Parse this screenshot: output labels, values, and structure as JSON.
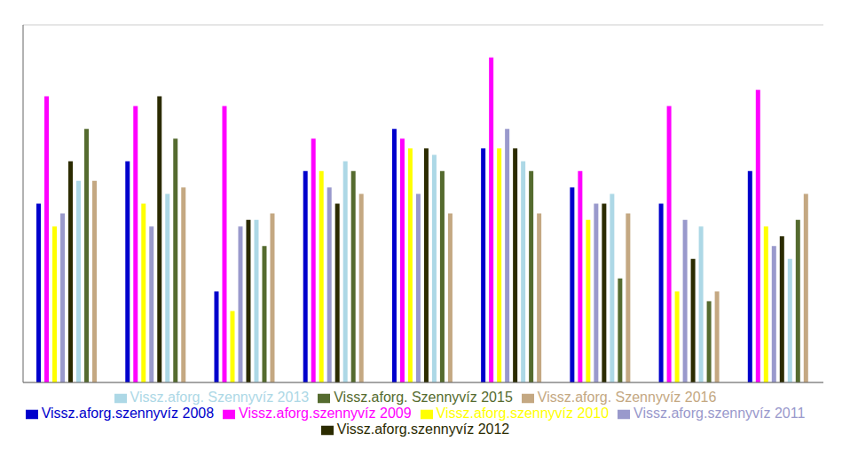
{
  "chart_data": {
    "type": "bar",
    "categories": [
      null,
      null,
      null,
      null,
      null,
      null,
      null,
      null,
      null
    ],
    "series": [
      {
        "name": "Vissz.aforg.szennyvíz 2008",
        "color": "#0000CC",
        "values": [
          55,
          68,
          28,
          65,
          78,
          72,
          60,
          55,
          65
        ]
      },
      {
        "name": "Vissz.aforg.szennyvíz 2009",
        "color": "#FF00FF",
        "values": [
          88,
          85,
          85,
          75,
          75,
          100,
          65,
          85,
          90
        ]
      },
      {
        "name": "Vissz.aforg.szennyvíz 2010",
        "color": "#FFFF00",
        "values": [
          48,
          55,
          22,
          65,
          72,
          72,
          50,
          28,
          48
        ]
      },
      {
        "name": "Vissz.aforg.szennyvíz 2011",
        "color": "#9999CC",
        "values": [
          52,
          48,
          48,
          60,
          58,
          78,
          55,
          50,
          42
        ]
      },
      {
        "name": "Vissz.aforg.szennyvíz 2012",
        "color": "#2B2B00",
        "values": [
          68,
          88,
          50,
          55,
          72,
          72,
          55,
          38,
          45
        ]
      },
      {
        "name": "Vissz.aforg. Szennyvíz 2013",
        "color": "#ADD8E6",
        "values": [
          62,
          58,
          50,
          68,
          70,
          68,
          58,
          48,
          38
        ]
      },
      {
        "name": "Vissz.aforg. Szennyvíz 2015",
        "color": "#556B2F",
        "values": [
          78,
          75,
          42,
          65,
          65,
          65,
          32,
          25,
          50
        ]
      },
      {
        "name": "Vissz.aforg. Szennyvíz 2016",
        "color": "#C4A882",
        "values": [
          62,
          60,
          52,
          58,
          52,
          52,
          52,
          28,
          58
        ]
      }
    ],
    "ylim": [
      0,
      110
    ],
    "yticks": [
      20,
      40,
      60,
      80,
      100
    ],
    "grid": true,
    "tick_labels": false,
    "legend": "bottom"
  }
}
